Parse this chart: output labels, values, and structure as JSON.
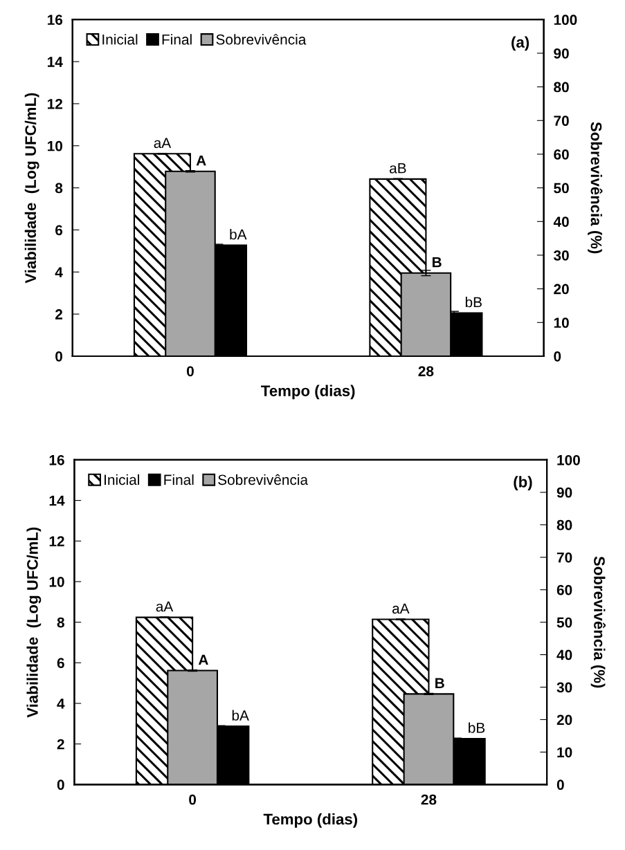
{
  "chart_data": [
    {
      "type": "bar",
      "categories": [
        "0",
        "28"
      ],
      "xlabel": "Tempo (dias)",
      "ylabel": "Viabilidade  (Log UFC/mL)",
      "y2label": "Sobrevivência (%)",
      "ylim": [
        0,
        16
      ],
      "yticks": [
        0,
        2,
        4,
        6,
        8,
        10,
        12,
        14,
        16
      ],
      "y2lim": [
        0,
        100
      ],
      "y2ticks": [
        0,
        10,
        20,
        30,
        40,
        50,
        60,
        70,
        80,
        90,
        100
      ],
      "legend": "top left",
      "annotations": [
        "(a)"
      ],
      "series": [
        {
          "name": "Inicial",
          "color": "#000000",
          "values": [
            9.62,
            8.42
          ],
          "errors": [
            0.02,
            0.02
          ],
          "value_labels": [
            "aA",
            "aB"
          ]
        },
        {
          "name": "Final",
          "color": "#000000",
          "values": [
            5.27,
            2.05
          ],
          "errors": [
            0.05,
            0.08
          ],
          "value_labels": [
            "bA",
            "bB"
          ]
        },
        {
          "name": "Sobrevivência",
          "color": "#a6a6a6",
          "axis": "y2",
          "values": [
            54.9,
            24.7
          ],
          "errors": [
            0.2,
            0.8
          ],
          "value_labels": [
            "A",
            "B"
          ]
        }
      ]
    },
    {
      "type": "bar",
      "categories": [
        "0",
        "28"
      ],
      "xlabel": "Tempo (dias)",
      "ylabel": "Viabilidade  (Log UFC/mL)",
      "y2label": "Sobrevivência (%)",
      "ylim": [
        0,
        16
      ],
      "yticks": [
        0,
        2,
        4,
        6,
        8,
        10,
        12,
        14,
        16
      ],
      "y2lim": [
        0,
        100
      ],
      "y2ticks": [
        0,
        10,
        20,
        30,
        40,
        50,
        60,
        70,
        80,
        90,
        100
      ],
      "legend": "top left",
      "annotations": [
        "(b)"
      ],
      "series": [
        {
          "name": "Inicial",
          "color": "#000000",
          "values": [
            8.24,
            8.14
          ],
          "errors": [
            0.02,
            0.02
          ],
          "value_labels": [
            "aA",
            "aA"
          ]
        },
        {
          "name": "Final",
          "color": "#000000",
          "values": [
            2.87,
            2.26
          ],
          "errors": [
            0.03,
            0.03
          ],
          "value_labels": [
            "bA",
            "bB"
          ]
        },
        {
          "name": "Sobrevivência",
          "color": "#a6a6a6",
          "axis": "y2",
          "values": [
            35.1,
            27.9
          ],
          "errors": [
            0.2,
            0.2
          ],
          "value_labels": [
            "A",
            "B"
          ]
        }
      ]
    }
  ]
}
